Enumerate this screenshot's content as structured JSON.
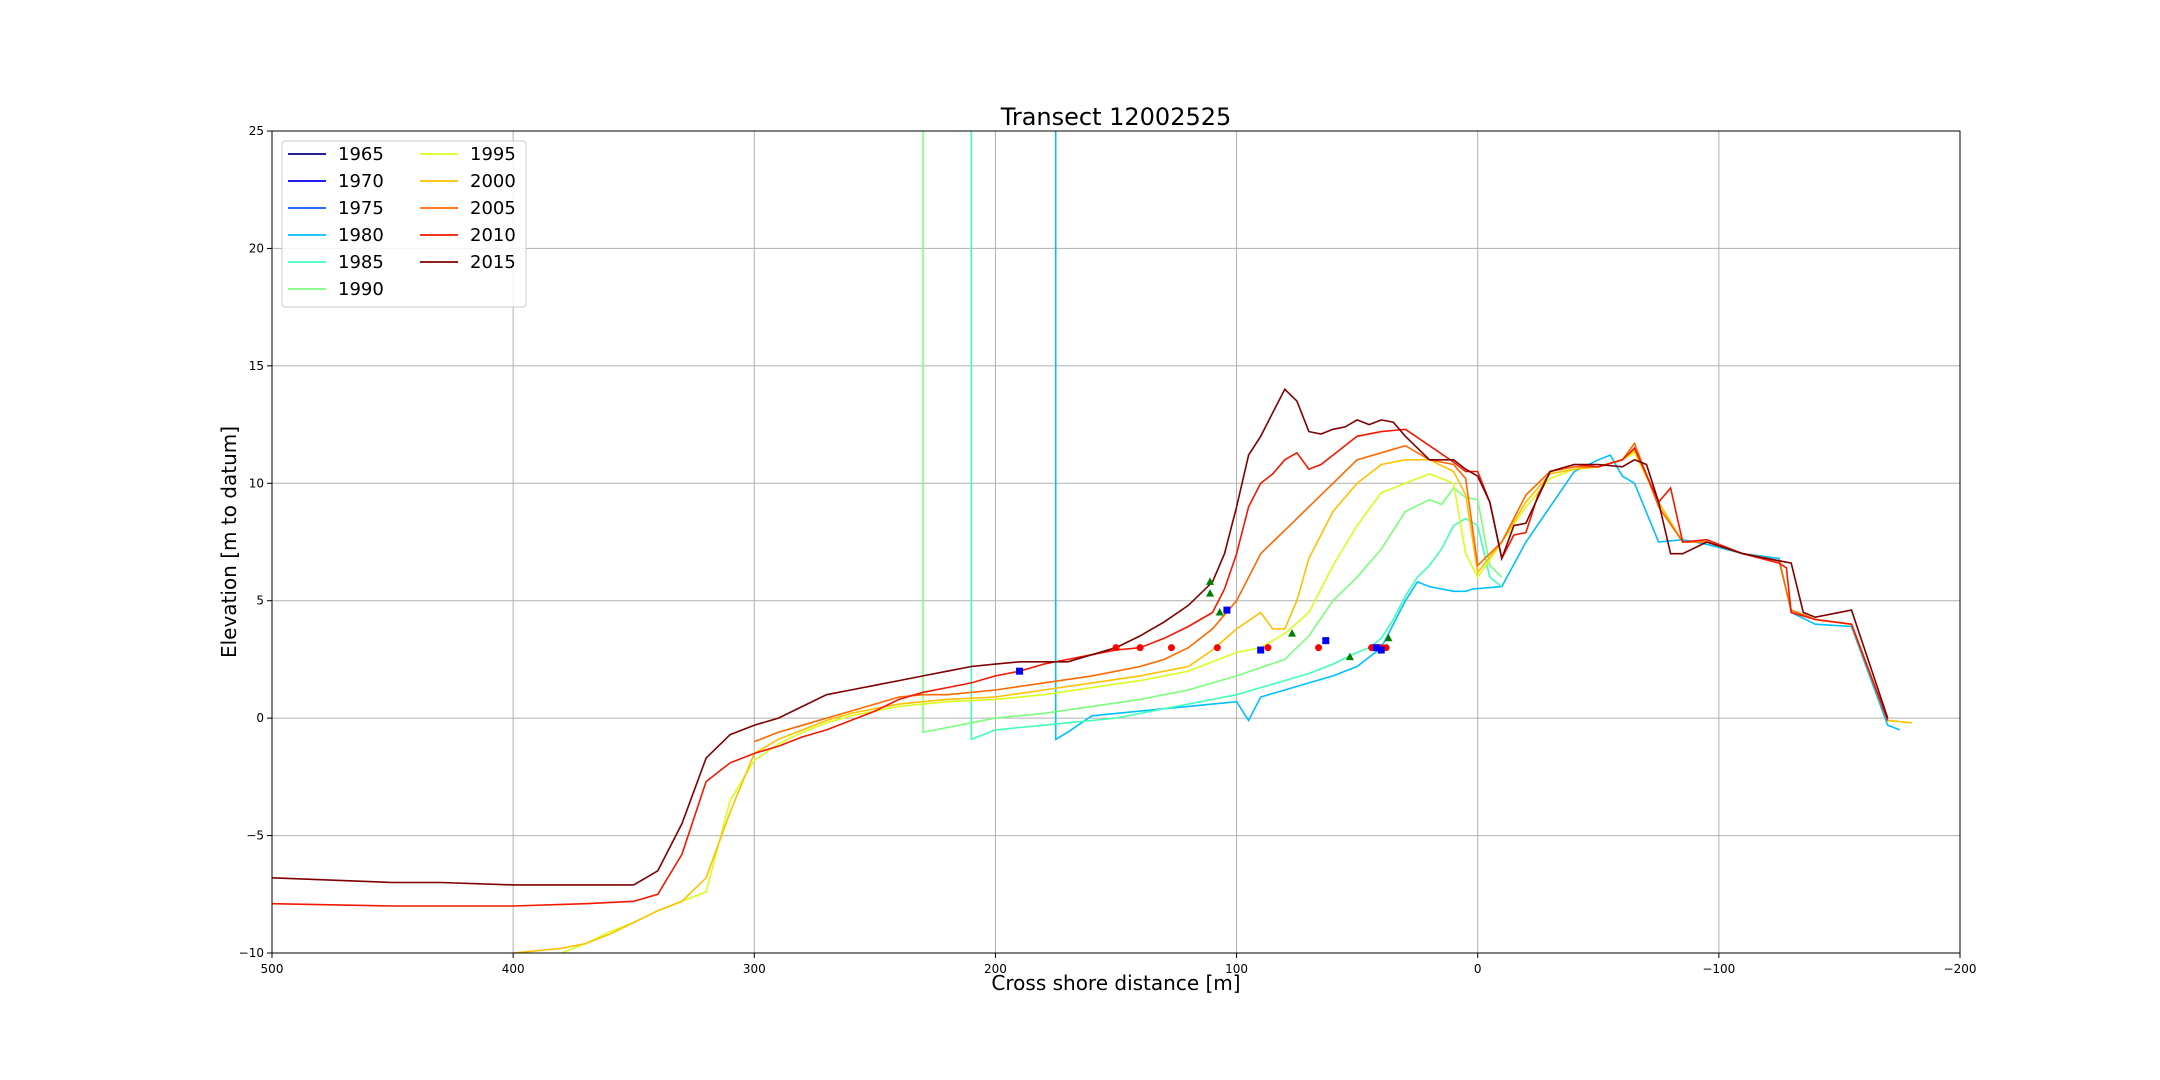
{
  "chart_data": {
    "type": "line",
    "title": "Transect 12002525",
    "xlabel": "Cross shore distance [m]",
    "ylabel": "Elevation [m to datum]",
    "xlim": [
      500,
      -200
    ],
    "ylim": [
      -10,
      25
    ],
    "x_ticks": [
      500,
      400,
      300,
      200,
      100,
      0,
      -100,
      -200
    ],
    "x_tick_labels": [
      "500",
      "400",
      "300",
      "200",
      "100",
      "0",
      "−100",
      "−200"
    ],
    "y_ticks": [
      -10,
      -5,
      0,
      5,
      10,
      15,
      20,
      25
    ],
    "y_tick_labels": [
      "−10",
      "−5",
      "0",
      "5",
      "10",
      "15",
      "20",
      "25"
    ],
    "grid": true,
    "legend_position": "top-left",
    "series": [
      {
        "name": "1965",
        "color": "#00007f",
        "x": [],
        "y": []
      },
      {
        "name": "1970",
        "color": "#0000f0",
        "x": [],
        "y": []
      },
      {
        "name": "1975",
        "color": "#0058ff",
        "x": [],
        "y": []
      },
      {
        "name": "1980",
        "color": "#00c0ff",
        "x": [
          175,
          175,
          170,
          160,
          150,
          140,
          130,
          120,
          110,
          100,
          95,
          90,
          80,
          70,
          60,
          50,
          45,
          40,
          35,
          30,
          25,
          20,
          10,
          5,
          2,
          -10,
          -20,
          -30,
          -40,
          -50,
          -55,
          -60,
          -65,
          -75,
          -85,
          -95,
          -110,
          -125,
          -130,
          -140,
          -155,
          -170,
          -175
        ],
        "y": [
          25,
          -0.9,
          -0.6,
          0.1,
          0.2,
          0.3,
          0.4,
          0.5,
          0.6,
          0.7,
          -0.1,
          0.9,
          1.2,
          1.5,
          1.8,
          2.2,
          2.6,
          3.0,
          4.0,
          5.0,
          5.8,
          5.6,
          5.4,
          5.4,
          5.5,
          5.6,
          7.5,
          9.0,
          10.5,
          11.0,
          11.2,
          10.3,
          10.0,
          7.5,
          7.6,
          7.4,
          7.0,
          6.8,
          4.5,
          4.0,
          3.9,
          -0.3,
          -0.5
        ]
      },
      {
        "name": "1985",
        "color": "#41ffb4",
        "x": [
          210,
          210,
          205,
          200,
          190,
          180,
          170,
          160,
          150,
          140,
          130,
          120,
          110,
          100,
          90,
          80,
          70,
          60,
          50,
          45,
          40,
          35,
          30,
          25,
          20,
          15,
          10,
          5,
          0,
          -5,
          -10
        ],
        "y": [
          25,
          -0.9,
          -0.7,
          -0.5,
          -0.4,
          -0.3,
          -0.2,
          -0.1,
          0.0,
          0.2,
          0.4,
          0.6,
          0.8,
          1.0,
          1.3,
          1.6,
          1.9,
          2.3,
          2.8,
          3.0,
          3.4,
          4.2,
          5.2,
          6.0,
          6.5,
          7.2,
          8.2,
          8.5,
          8.2,
          6.0,
          5.6
        ]
      },
      {
        "name": "1990",
        "color": "#7aff7c",
        "x": [
          230,
          230,
          225,
          210,
          200,
          180,
          160,
          140,
          120,
          100,
          80,
          70,
          60,
          50,
          40,
          30,
          20,
          15,
          10,
          5,
          0,
          -5,
          -10
        ],
        "y": [
          25,
          -0.6,
          -0.5,
          -0.2,
          0.0,
          0.2,
          0.5,
          0.8,
          1.2,
          1.8,
          2.5,
          3.5,
          5.0,
          6.0,
          7.2,
          8.8,
          9.3,
          9.1,
          9.8,
          9.4,
          9.3,
          6.5,
          6.0
        ]
      },
      {
        "name": "1995",
        "color": "#d8ff1e",
        "x": [
          380,
          370,
          360,
          350,
          340,
          330,
          320,
          310,
          300,
          290,
          280,
          270,
          260,
          250,
          240,
          230,
          220,
          200,
          180,
          160,
          140,
          120,
          100,
          90,
          80,
          70,
          60,
          50,
          40,
          30,
          20,
          10,
          5,
          0,
          -10,
          -20,
          -30,
          -40,
          -50,
          -60,
          -65,
          -75,
          -85,
          -95,
          -110,
          -125,
          -130,
          -140,
          -155,
          -170,
          -180
        ],
        "y": [
          -10,
          -9.6,
          -9.1,
          -8.7,
          -8.2,
          -7.8,
          -7.4,
          -3.5,
          -1.8,
          -1.1,
          -0.6,
          -0.2,
          0.1,
          0.3,
          0.5,
          0.6,
          0.7,
          0.8,
          1.0,
          1.3,
          1.6,
          2.0,
          2.8,
          3.0,
          3.6,
          4.5,
          6.5,
          8.2,
          9.6,
          10.0,
          10.4,
          10.0,
          7.0,
          6.0,
          7.5,
          9.0,
          10.2,
          10.6,
          10.7,
          11.0,
          11.3,
          9.2,
          7.5,
          7.5,
          7.0,
          6.7,
          4.6,
          4.2,
          4.0,
          -0.1,
          -0.2
        ]
      },
      {
        "name": "2000",
        "color": "#ffc000",
        "x": [
          400,
          390,
          380,
          370,
          360,
          350,
          340,
          330,
          320,
          310,
          300,
          290,
          280,
          270,
          260,
          250,
          240,
          230,
          220,
          200,
          180,
          160,
          140,
          120,
          110,
          100,
          90,
          85,
          80,
          75,
          70,
          60,
          50,
          40,
          30,
          20,
          10,
          5,
          0,
          -10,
          -20,
          -30,
          -40,
          -50,
          -60,
          -65,
          -75,
          -85,
          -95,
          -110,
          -125,
          -130,
          -140,
          -155,
          -170,
          -180
        ],
        "y": [
          -10,
          -9.9,
          -9.8,
          -9.6,
          -9.2,
          -8.7,
          -8.2,
          -7.8,
          -6.8,
          -4.0,
          -1.5,
          -0.9,
          -0.5,
          -0.1,
          0.2,
          0.4,
          0.6,
          0.7,
          0.8,
          0.9,
          1.2,
          1.5,
          1.8,
          2.2,
          2.9,
          3.8,
          4.5,
          3.8,
          3.8,
          5.0,
          6.8,
          8.8,
          10.0,
          10.8,
          11.0,
          11.0,
          10.5,
          9.5,
          6.2,
          7.5,
          9.2,
          10.4,
          10.6,
          10.7,
          11.0,
          11.4,
          9.2,
          7.5,
          7.5,
          7.0,
          6.7,
          4.6,
          4.2,
          4.0,
          -0.1,
          -0.2
        ]
      },
      {
        "name": "2005",
        "color": "#ff6800",
        "x": [
          300,
          290,
          280,
          270,
          260,
          250,
          240,
          230,
          220,
          200,
          180,
          160,
          140,
          130,
          120,
          110,
          100,
          90,
          85,
          80,
          70,
          60,
          50,
          40,
          30,
          20,
          10,
          5,
          0,
          -10,
          -20,
          -30,
          -40,
          -50,
          -60,
          -65,
          -75,
          -85,
          -95,
          -110,
          -125,
          -130,
          -140,
          -155,
          -170
        ],
        "y": [
          -1.0,
          -0.6,
          -0.3,
          0.0,
          0.3,
          0.6,
          0.9,
          1.0,
          1.0,
          1.2,
          1.5,
          1.8,
          2.2,
          2.5,
          3.0,
          3.8,
          5.0,
          7.0,
          7.5,
          8.0,
          9.0,
          10.0,
          11.0,
          11.3,
          11.6,
          11.0,
          10.8,
          10.2,
          6.5,
          7.5,
          9.5,
          10.5,
          10.7,
          10.7,
          11.0,
          11.7,
          9.0,
          7.5,
          7.5,
          7.0,
          6.7,
          4.6,
          4.2,
          4.0,
          -0.1
        ]
      },
      {
        "name": "2010",
        "color": "#f41800",
        "x": [
          500,
          450,
          400,
          370,
          350,
          340,
          330,
          320,
          310,
          300,
          290,
          280,
          270,
          260,
          250,
          240,
          230,
          220,
          210,
          200,
          190,
          180,
          170,
          160,
          150,
          140,
          130,
          120,
          110,
          105,
          100,
          95,
          90,
          85,
          80,
          75,
          70,
          65,
          60,
          50,
          40,
          30,
          20,
          10,
          5,
          0,
          -5,
          -10,
          -15,
          -20,
          -25,
          -30,
          -40,
          -50,
          -60,
          -65,
          -75,
          -80,
          -85,
          -95,
          -110,
          -125,
          -128,
          -130,
          -140,
          -155,
          -170
        ],
        "y": [
          -7.9,
          -8.0,
          -8.0,
          -7.9,
          -7.8,
          -7.5,
          -5.8,
          -2.7,
          -1.9,
          -1.5,
          -1.2,
          -0.8,
          -0.5,
          -0.1,
          0.3,
          0.8,
          1.1,
          1.3,
          1.5,
          1.8,
          2.0,
          2.3,
          2.5,
          2.7,
          2.9,
          3.0,
          3.4,
          3.9,
          4.5,
          5.5,
          7.0,
          9.0,
          10.0,
          10.4,
          11.0,
          11.3,
          10.6,
          10.8,
          11.2,
          12.0,
          12.2,
          12.3,
          11.6,
          10.9,
          10.5,
          10.5,
          9.2,
          6.8,
          7.8,
          7.9,
          9.5,
          10.5,
          10.8,
          10.7,
          11.0,
          11.5,
          9.2,
          9.8,
          7.5,
          7.6,
          7.0,
          6.6,
          6.4,
          4.5,
          4.2,
          4.0,
          -0.1
        ]
      },
      {
        "name": "2015",
        "color": "#7f0000",
        "x": [
          500,
          450,
          430,
          400,
          380,
          350,
          340,
          330,
          320,
          310,
          300,
          290,
          280,
          270,
          260,
          250,
          240,
          230,
          220,
          210,
          200,
          190,
          180,
          170,
          160,
          150,
          140,
          130,
          120,
          110,
          105,
          100,
          95,
          90,
          85,
          80,
          75,
          70,
          65,
          60,
          55,
          50,
          45,
          40,
          35,
          30,
          20,
          10,
          5,
          0,
          -5,
          -10,
          -15,
          -20,
          -30,
          -40,
          -50,
          -60,
          -65,
          -70,
          -75,
          -80,
          -85,
          -95,
          -110,
          -125,
          -130,
          -135,
          -140,
          -155,
          -170
        ],
        "y": [
          -6.8,
          -7.0,
          -7.0,
          -7.1,
          -7.1,
          -7.1,
          -6.5,
          -4.5,
          -1.7,
          -0.7,
          -0.3,
          0.0,
          0.5,
          1.0,
          1.2,
          1.4,
          1.6,
          1.8,
          2.0,
          2.2,
          2.3,
          2.4,
          2.4,
          2.4,
          2.7,
          3.0,
          3.5,
          4.1,
          4.8,
          5.8,
          7.0,
          9.0,
          11.2,
          12.0,
          13.0,
          14.0,
          13.5,
          12.2,
          12.1,
          12.3,
          12.4,
          12.7,
          12.5,
          12.7,
          12.6,
          12.0,
          11.0,
          11.0,
          10.6,
          10.3,
          9.2,
          6.8,
          8.2,
          8.3,
          10.5,
          10.8,
          10.8,
          10.7,
          11.0,
          10.8,
          9.2,
          7.0,
          7.0,
          7.5,
          7.0,
          6.7,
          6.6,
          4.5,
          4.3,
          4.6,
          0.0
        ]
      }
    ],
    "markers": [
      {
        "kind": "red-circle",
        "color": "#ff0000",
        "points": [
          [
            150,
            3.0
          ],
          [
            140,
            3.0
          ],
          [
            127,
            3.0
          ],
          [
            108,
            3.0
          ],
          [
            87,
            3.0
          ],
          [
            66,
            3.0
          ],
          [
            44,
            3.0
          ],
          [
            40,
            3.0
          ],
          [
            38,
            3.0
          ]
        ]
      },
      {
        "kind": "blue-square",
        "color": "#0000ff",
        "points": [
          [
            190,
            2.0
          ],
          [
            104,
            4.6
          ],
          [
            90,
            2.9
          ],
          [
            63,
            3.3
          ],
          [
            42,
            3.0
          ],
          [
            40,
            2.9
          ]
        ]
      },
      {
        "kind": "green-triangle",
        "color": "#008000",
        "points": [
          [
            111,
            5.8
          ],
          [
            111,
            5.3
          ],
          [
            107,
            4.5
          ],
          [
            77,
            3.6
          ],
          [
            53,
            2.6
          ],
          [
            37,
            3.4
          ]
        ]
      }
    ]
  }
}
